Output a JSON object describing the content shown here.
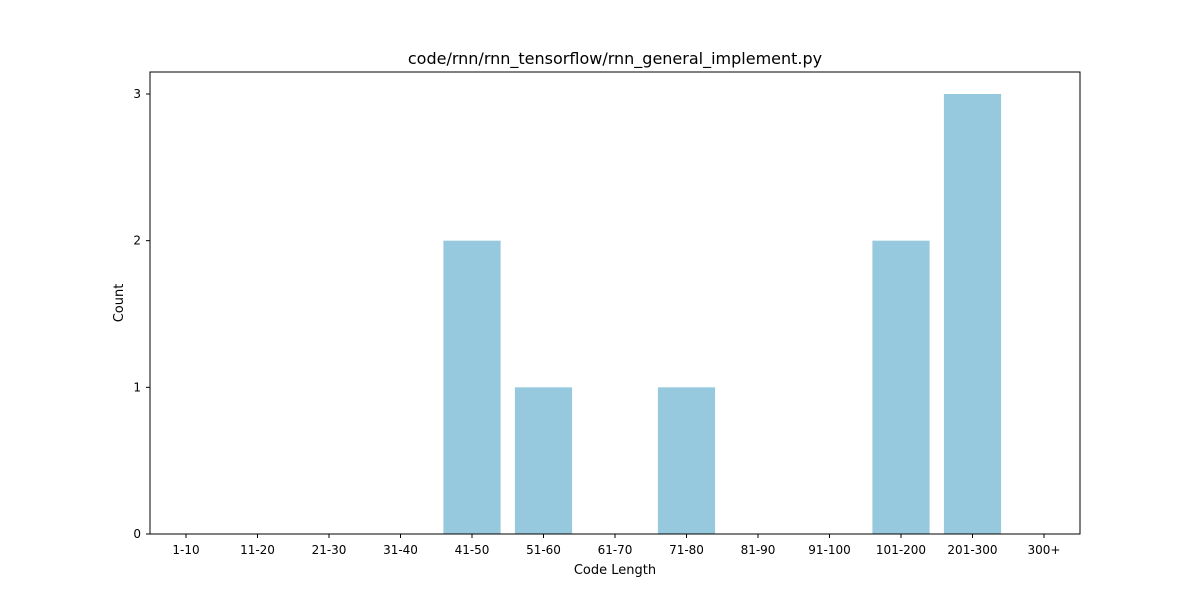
{
  "chart_data": {
    "type": "bar",
    "title": "code/rnn/rnn_tensorflow/rnn_general_implement.py",
    "xlabel": "Code Length",
    "ylabel": "Count",
    "categories": [
      "1-10",
      "11-20",
      "21-30",
      "31-40",
      "41-50",
      "51-60",
      "61-70",
      "71-80",
      "81-90",
      "91-100",
      "101-200",
      "201-300",
      "300+"
    ],
    "values": [
      0,
      0,
      0,
      0,
      2,
      1,
      0,
      1,
      0,
      0,
      2,
      3,
      0
    ],
    "ylim": [
      0,
      3.15
    ],
    "yticks": [
      0,
      1,
      2,
      3
    ],
    "bar_color": "#96c9dd",
    "grid": false,
    "legend": "none"
  }
}
